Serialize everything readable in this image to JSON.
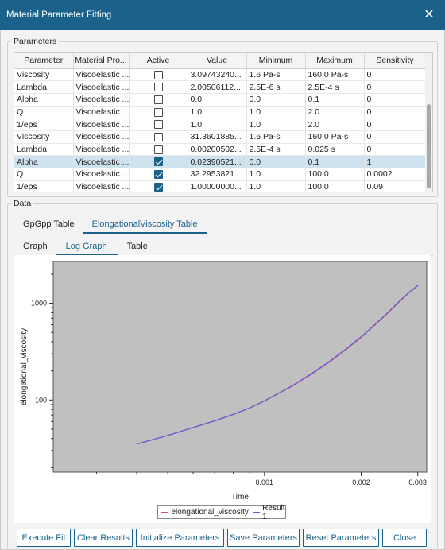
{
  "window": {
    "title": "Material Parameter Fitting"
  },
  "parameters": {
    "legend": "Parameters",
    "columns": [
      "Parameter",
      "Material Pro...",
      "Active",
      "Value",
      "Minimum",
      "Maximum",
      "Sensitivity"
    ],
    "rows": [
      {
        "parameter": "Viscosity",
        "material": "Viscoelastic ...",
        "active": false,
        "value": "3.09743240...",
        "minimum": "1.6 Pa-s",
        "maximum": "160.0 Pa-s",
        "sensitivity": "0"
      },
      {
        "parameter": "Lambda",
        "material": "Viscoelastic ...",
        "active": false,
        "value": "2.00506112...",
        "minimum": "2.5E-6 s",
        "maximum": "2.5E-4 s",
        "sensitivity": "0"
      },
      {
        "parameter": "Alpha",
        "material": "Viscoelastic ...",
        "active": false,
        "value": "0.0",
        "minimum": "0.0",
        "maximum": "0.1",
        "sensitivity": "0"
      },
      {
        "parameter": "Q",
        "material": "Viscoelastic ...",
        "active": false,
        "value": "1.0",
        "minimum": "1.0",
        "maximum": "2.0",
        "sensitivity": "0"
      },
      {
        "parameter": "1/eps",
        "material": "Viscoelastic ...",
        "active": false,
        "value": "1.0",
        "minimum": "1.0",
        "maximum": "2.0",
        "sensitivity": "0"
      },
      {
        "parameter": "Viscosity",
        "material": "Viscoelastic ...",
        "active": false,
        "value": "31.3601885...",
        "minimum": "1.6 Pa-s",
        "maximum": "160.0 Pa-s",
        "sensitivity": "0"
      },
      {
        "parameter": "Lambda",
        "material": "Viscoelastic ...",
        "active": false,
        "value": "0.00200502...",
        "minimum": "2.5E-4 s",
        "maximum": "0.025 s",
        "sensitivity": "0"
      },
      {
        "parameter": "Alpha",
        "material": "Viscoelastic ...",
        "active": true,
        "value": "0.02390521...",
        "minimum": "0.0",
        "maximum": "0.1",
        "sensitivity": "1",
        "selected": true
      },
      {
        "parameter": "Q",
        "material": "Viscoelastic ...",
        "active": true,
        "value": "32.2953821...",
        "minimum": "1.0",
        "maximum": "100.0",
        "sensitivity": "0.0002"
      },
      {
        "parameter": "1/eps",
        "material": "Viscoelastic ...",
        "active": true,
        "value": "1.00000000...",
        "minimum": "1.0",
        "maximum": "100.0",
        "sensitivity": "0.09"
      }
    ]
  },
  "data": {
    "legend": "Data",
    "tabs": [
      "GpGpp Table",
      "ElongationalViscosity Table"
    ],
    "active_tab": 1,
    "subtabs": [
      "Graph",
      "Log Graph",
      "Table"
    ],
    "active_subtab": 1
  },
  "chart_data": {
    "type": "line",
    "xlabel": "Time",
    "ylabel": "elongational_viscosity",
    "x_scale": "log",
    "y_scale": "log",
    "xlim": [
      0.00022,
      0.0032
    ],
    "ylim": [
      18,
      2700
    ],
    "x_tick_labels": [
      "0.001",
      "0.002",
      "0.003"
    ],
    "y_tick_labels": [
      "100",
      "1000"
    ],
    "grid": false,
    "background": "#c0c0c0",
    "legend_position": "bottom",
    "series": [
      {
        "name": "elongational_viscosity",
        "color": "#d9506e",
        "x": [
          0.0004,
          0.0005,
          0.0006,
          0.0007,
          0.0008,
          0.0009,
          0.001,
          0.0012,
          0.0014,
          0.0016,
          0.0018,
          0.002,
          0.0022,
          0.0024,
          0.0026,
          0.0028,
          0.003
        ],
        "y": [
          35,
          43,
          52,
          61,
          71,
          83,
          98,
          135,
          185,
          250,
          335,
          445,
          590,
          770,
          1000,
          1260,
          1520
        ]
      },
      {
        "name": "Result 1",
        "color": "#6b5bd6",
        "x": [
          0.0004,
          0.0005,
          0.0006,
          0.0007,
          0.0008,
          0.0009,
          0.001,
          0.0012,
          0.0014,
          0.0016,
          0.0018,
          0.002,
          0.0022,
          0.0024,
          0.0026,
          0.0028,
          0.003
        ],
        "y": [
          35,
          43,
          52,
          61,
          71,
          83,
          98,
          136,
          187,
          253,
          340,
          450,
          598,
          780,
          1010,
          1270,
          1530
        ]
      }
    ]
  },
  "buttons": {
    "execute_fit": "Execute Fit",
    "clear_results": "Clear Results",
    "initialize_parameters": "Initialize Parameters",
    "save_parameters": "Save Parameters",
    "reset_parameters": "Reset Parameters",
    "close": "Close"
  },
  "colors": {
    "accent": "#1a6289",
    "titlebar": "#1a6289",
    "selected_row": "#cfe3ee"
  }
}
